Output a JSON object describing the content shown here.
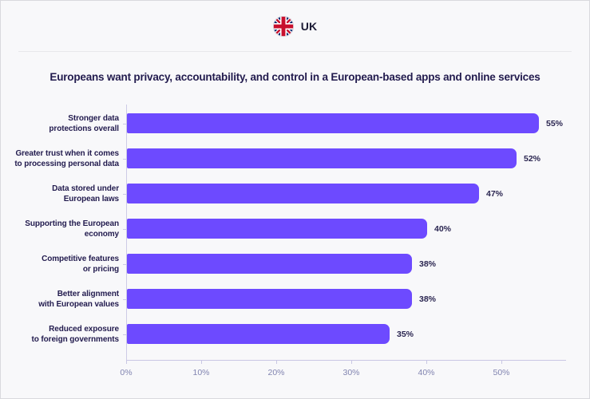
{
  "header": {
    "country_label": "UK",
    "flag_icon": "uk-flag"
  },
  "chart_data": {
    "type": "bar",
    "orientation": "horizontal",
    "title": "Europeans want privacy, accountability, and control in a European-based apps and online services",
    "categories": [
      "Stronger data\nprotections overall",
      "Greater trust when it comes\nto processing personal data",
      "Data stored under\nEuropean laws",
      "Supporting the European\neconomy",
      "Competitive features\nor pricing",
      "Better alignment\nwith European values",
      "Reduced exposure\nto foreign governments"
    ],
    "values": [
      55,
      52,
      47,
      40,
      38,
      38,
      35
    ],
    "value_labels": [
      "55%",
      "52%",
      "47%",
      "40%",
      "38%",
      "38%",
      "35%"
    ],
    "x_ticks": [
      0,
      10,
      20,
      30,
      40,
      50
    ],
    "x_tick_labels": [
      "0%",
      "10%",
      "20%",
      "30%",
      "40%",
      "50%"
    ],
    "xlim": [
      0,
      58.5
    ],
    "xlabel": "",
    "ylabel": "",
    "grid": false,
    "legend": false,
    "value_label_position": "outside-end",
    "bar_color": "#6D4AFF"
  },
  "colors": {
    "page_background": "#F8F8FA",
    "page_border": "#D9D9DE",
    "divider": "#E8E8EB",
    "bar": "#6D4AFF",
    "title_text": "#221B4E",
    "category_label_text": "#221B4E",
    "value_label_text": "#2A2550",
    "axis_line": "#C9C7E4",
    "tick_label_text": "#8184B0",
    "flag_blue": "#012169",
    "flag_red": "#C8102E"
  }
}
